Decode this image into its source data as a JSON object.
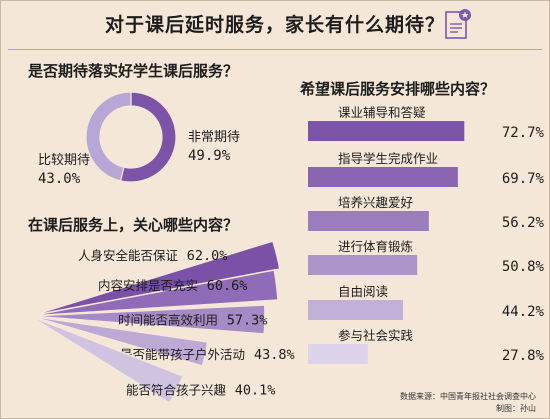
{
  "title": "对于课后延时服务，家长有什么期待？",
  "section1_title": "是否期待落实好学生课后服务？",
  "section2_title": "在课后服务上，关心哪些内容？",
  "section3_title": "希望课后服务安排哪些内容？",
  "source_text": "数据来源：中国青年报社社会调查中心",
  "credit_text": "制图：孙山",
  "colors": {
    "background": "#f4e7d7",
    "accent": "#7f57ab",
    "light_purple": "#b5a2d3"
  },
  "chart_data": [
    {
      "type": "pie",
      "title": "是否期待落实好学生课后服务？",
      "slices": [
        {
          "label": "非常期待",
          "value": 49.9,
          "display": "49.9%",
          "color": "#7b54a8"
        },
        {
          "label": "比较期待",
          "value": 43.0,
          "display": "43.0%",
          "color": "#b8a6d6"
        }
      ]
    },
    {
      "type": "bar",
      "title": "在课后服务上，关心哪些内容？",
      "categories": [
        "人身安全能否保证",
        "内容安排是否充实",
        "时间能否高效利用",
        "是否能带孩子户外活动",
        "能否符合孩子兴趣"
      ],
      "values": [
        62.0,
        60.6,
        57.3,
        43.8,
        40.1
      ],
      "display": [
        "62.0%",
        "60.6%",
        "57.3%",
        "43.8%",
        "40.1%"
      ],
      "colors": [
        "#7a51a7",
        "#906bb7",
        "#a68ac6",
        "#bca9d4",
        "#d0c3e2"
      ]
    },
    {
      "type": "bar",
      "title": "希望课后服务安排哪些内容？",
      "categories": [
        "课业辅导和答疑",
        "指导学生完成作业",
        "培养兴趣爱好",
        "进行体育锻炼",
        "自由阅读",
        "参与社会实践"
      ],
      "values": [
        72.7,
        69.7,
        56.2,
        50.8,
        44.2,
        27.8
      ],
      "display": [
        "72.7%",
        "69.7%",
        "56.2%",
        "50.8%",
        "44.2%",
        "27.8%"
      ],
      "colors": [
        "#7b54a8",
        "#8a65b2",
        "#9b7dbd",
        "#ad94c9",
        "#c1afd6",
        "#dcd2ea"
      ]
    }
  ]
}
